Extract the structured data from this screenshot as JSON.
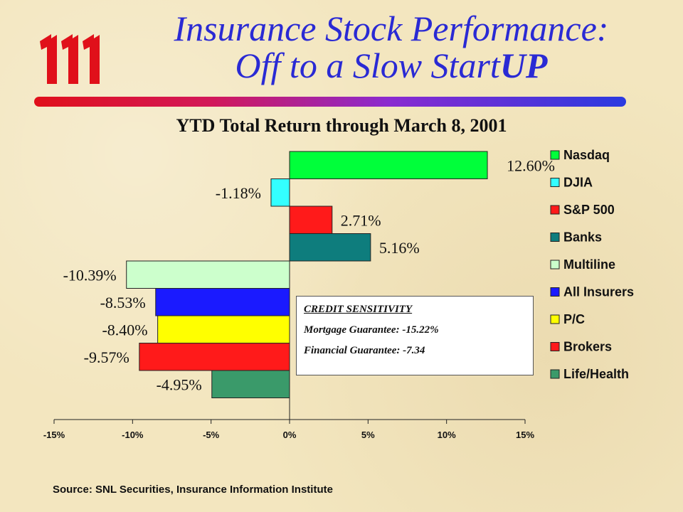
{
  "slide": {
    "title_line1": "Insurance Stock Performance:",
    "title_line2_plain": "Off to a Slow Start",
    "title_line2_bold": "UP",
    "source": "Source: SNL Securities, Insurance Information Institute",
    "logo": "iii-logo-icon"
  },
  "credit_box": {
    "heading": "CREDIT SENSITIVITY",
    "mortgage": "Mortgage Guarantee: -15.22%",
    "financial": "Financial Guarantee: -7.34"
  },
  "chart_data": {
    "type": "bar",
    "orientation": "horizontal",
    "title": "YTD Total Return through March 8, 2001",
    "xlim": [
      -15,
      15
    ],
    "x_ticks": [
      -15,
      -10,
      -5,
      0,
      5,
      10,
      15
    ],
    "x_tick_labels": [
      "-15%",
      "-10%",
      "-5%",
      "0%",
      "5%",
      "10%",
      "15%"
    ],
    "legend_position": "right",
    "grid": false,
    "series": [
      {
        "name": "Nasdaq",
        "value": 12.6,
        "label": "12.60%",
        "color": "#00ff3a"
      },
      {
        "name": "DJIA",
        "value": -1.18,
        "label": "-1.18%",
        "color": "#33ffff"
      },
      {
        "name": "S&P 500",
        "value": 2.71,
        "label": "2.71%",
        "color": "#ff1a1a"
      },
      {
        "name": "Banks",
        "value": 5.16,
        "label": "5.16%",
        "color": "#0e7d7d"
      },
      {
        "name": "Multiline",
        "value": -10.39,
        "label": "-10.39%",
        "color": "#ccffcc"
      },
      {
        "name": "All Insurers",
        "value": -8.53,
        "label": "-8.53%",
        "color": "#1a1aff"
      },
      {
        "name": "P/C",
        "value": -8.4,
        "label": "-8.40%",
        "color": "#ffff00"
      },
      {
        "name": "Brokers",
        "value": -9.57,
        "label": "-9.57%",
        "color": "#ff1a1a"
      },
      {
        "name": "Life/Health",
        "value": -4.95,
        "label": "-4.95%",
        "color": "#3a9a6a"
      }
    ]
  }
}
